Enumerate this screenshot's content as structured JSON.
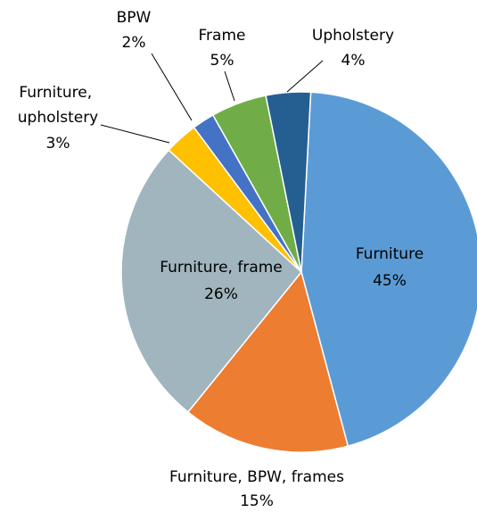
{
  "chart_data": {
    "type": "pie",
    "categories": [
      "Furniture",
      "Furniture, BPW, frames",
      "Furniture, frame",
      "Furniture, upholstery",
      "BPW",
      "Frame",
      "Upholstery"
    ],
    "values": [
      45,
      15,
      26,
      3,
      2,
      5,
      4
    ],
    "value_labels": [
      "45%",
      "15%",
      "26%",
      "3%",
      "2%",
      "5%",
      "4%"
    ],
    "colors": [
      "#5b9bd5",
      "#ed7d31",
      "#a0b5bd",
      "#ffc000",
      "#4472c4",
      "#70ad47",
      "#255e91"
    ]
  }
}
